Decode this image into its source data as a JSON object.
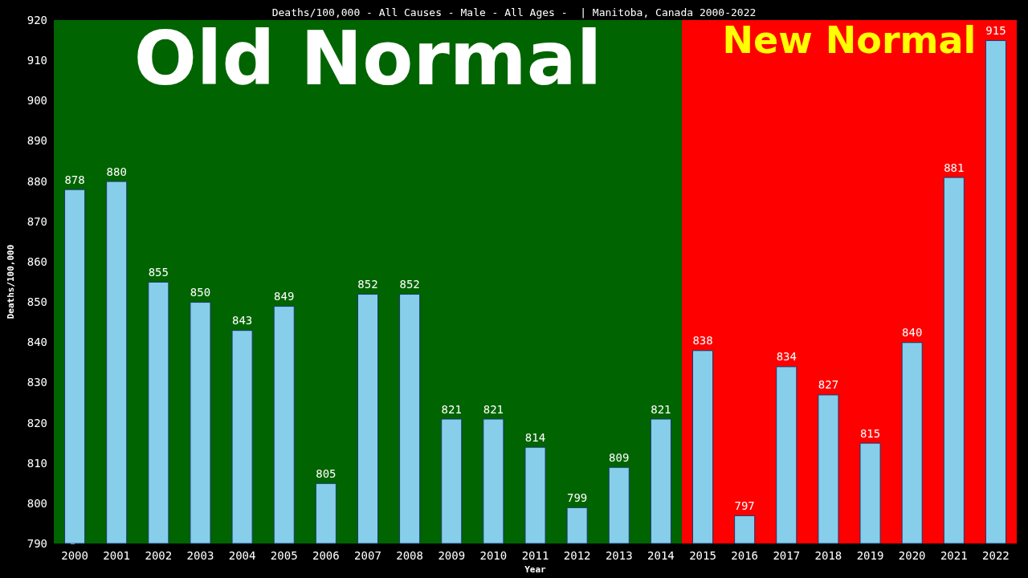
{
  "chart_data": {
    "type": "bar",
    "title": "Deaths/100,000 - All Causes - Male - All Ages -  | Manitoba, Canada 2000-2022",
    "xlabel": "Year",
    "ylabel": "Deaths/100,000",
    "categories": [
      "2000",
      "2001",
      "2002",
      "2003",
      "2004",
      "2005",
      "2006",
      "2007",
      "2008",
      "2009",
      "2010",
      "2011",
      "2012",
      "2013",
      "2014",
      "2015",
      "2016",
      "2017",
      "2018",
      "2019",
      "2020",
      "2021",
      "2022"
    ],
    "values": [
      878,
      880,
      855,
      850,
      843,
      849,
      805,
      852,
      852,
      821,
      821,
      814,
      799,
      809,
      821,
      838,
      797,
      834,
      827,
      815,
      840,
      881,
      915
    ],
    "color": "#87ceeb",
    "ylim": [
      790,
      920
    ],
    "yticks": [
      790,
      800,
      810,
      820,
      830,
      840,
      850,
      860,
      870,
      880,
      890,
      900,
      910,
      920
    ],
    "grid": false,
    "data_labels": true,
    "bands": [
      {
        "axis": "x",
        "from": "2000",
        "to": "2014",
        "label": "Old Normal",
        "color": "#006400"
      },
      {
        "axis": "x",
        "from": "2015",
        "to": "2022",
        "label": "New Normal",
        "color": "#ff0000"
      }
    ]
  }
}
